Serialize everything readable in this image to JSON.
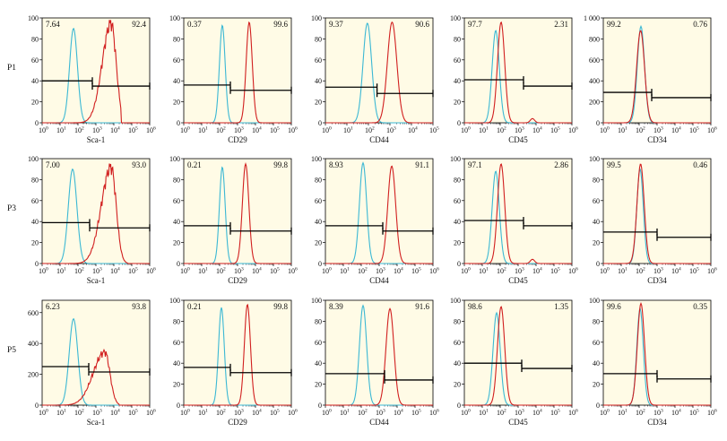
{
  "chart_data": {
    "type": "line",
    "layout": "3 rows x 5 columns of flow cytometry histograms",
    "rows": [
      "P1",
      "P3",
      "P5"
    ],
    "markers": [
      "Sca-1",
      "CD29",
      "CD44",
      "CD45",
      "CD34"
    ],
    "x_scale": "log",
    "x_ticks": [
      "0",
      "1",
      "2",
      "3",
      "4",
      "5",
      "6"
    ],
    "overlay_color": "#d11f1f",
    "control_color": "#3bb8d4",
    "panel_background": "#fffbe6",
    "panels": [
      {
        "row": "P1",
        "marker": "Sca-1",
        "x_exp_max": 6,
        "y_ticks": [
          "0",
          "20",
          "40",
          "60",
          "80",
          "100"
        ],
        "y_max": 100,
        "gate_left": "7.64",
        "gate_right": "92.4",
        "control": {
          "peak_log": 1.75,
          "height": 90,
          "spread": 0.22
        },
        "sample": {
          "peak_log": 3.85,
          "height": 95,
          "spread": 0.5,
          "shape": "broad-cutoff",
          "cutoff_log": 4.4
        },
        "gate_left_y": 40,
        "gate_right_y": 35,
        "split_log": 2.8
      },
      {
        "row": "P1",
        "marker": "CD29",
        "x_exp_max": 6,
        "y_ticks": [
          "0",
          "20",
          "40",
          "60",
          "80",
          "100"
        ],
        "y_max": 100,
        "gate_left": "0.37",
        "gate_right": "99.6",
        "control": {
          "peak_log": 2.15,
          "height": 93,
          "spread": 0.16
        },
        "sample": {
          "peak_log": 3.65,
          "height": 96,
          "spread": 0.17
        },
        "gate_left_y": 36,
        "gate_right_y": 31,
        "split_log": 2.6
      },
      {
        "row": "P1",
        "marker": "CD44",
        "x_exp_max": 5,
        "y_ticks": [
          "0",
          "20",
          "40",
          "60",
          "80",
          "100"
        ],
        "y_max": 100,
        "gate_left": "9.37",
        "gate_right": "90.6",
        "control": {
          "peak_log": 1.95,
          "height": 95,
          "spread": 0.2
        },
        "sample": {
          "peak_log": 3.1,
          "height": 96,
          "spread": 0.22
        },
        "gate_left_y": 34,
        "gate_right_y": 28,
        "split_log": 2.4
      },
      {
        "row": "P1",
        "marker": "CD45",
        "x_exp_max": 6,
        "y_ticks": [
          "0",
          "20",
          "40",
          "60",
          "80",
          "100"
        ],
        "y_max": 100,
        "gate_left": "97.7",
        "gate_right": "2.31",
        "control": {
          "peak_log": 1.75,
          "height": 88,
          "spread": 0.2
        },
        "sample": {
          "peak_log": 2.05,
          "height": 96,
          "spread": 0.2,
          "bump_log": 3.8
        },
        "gate_left_y": 41,
        "gate_right_y": 35,
        "split_log": 3.3
      },
      {
        "row": "P1",
        "marker": "CD34",
        "x_exp_max": 6,
        "y_ticks": [
          "0",
          "200",
          "400",
          "600",
          "800",
          "1 000"
        ],
        "y_max": 1000,
        "gate_left": "99.2",
        "gate_right": "0.76",
        "control": {
          "peak_log": 2.1,
          "height": 920,
          "spread": 0.2
        },
        "sample": {
          "peak_log": 2.08,
          "height": 880,
          "spread": 0.22
        },
        "gate_left_y": 290,
        "gate_right_y": 240,
        "split_log": 2.7
      },
      {
        "row": "P3",
        "marker": "Sca-1",
        "x_exp_max": 6,
        "y_ticks": [
          "0",
          "20",
          "40",
          "60",
          "80",
          "100"
        ],
        "y_max": 100,
        "gate_left": "7.00",
        "gate_right": "93.0",
        "control": {
          "peak_log": 1.7,
          "height": 90,
          "spread": 0.24
        },
        "sample": {
          "peak_log": 3.85,
          "height": 92,
          "spread": 0.55,
          "shape": "broad-cutoff",
          "cutoff_log": 4.8
        },
        "gate_left_y": 39,
        "gate_right_y": 34,
        "split_log": 2.65
      },
      {
        "row": "P3",
        "marker": "CD29",
        "x_exp_max": 6,
        "y_ticks": [
          "0",
          "20",
          "40",
          "60",
          "80",
          "100"
        ],
        "y_max": 100,
        "gate_left": "0.21",
        "gate_right": "99.8",
        "control": {
          "peak_log": 2.15,
          "height": 92,
          "spread": 0.16
        },
        "sample": {
          "peak_log": 3.45,
          "height": 95,
          "spread": 0.18
        },
        "gate_left_y": 36,
        "gate_right_y": 31,
        "split_log": 2.6
      },
      {
        "row": "P3",
        "marker": "CD44",
        "x_exp_max": 6,
        "y_ticks": [
          "0",
          "20",
          "40",
          "60",
          "80",
          "100"
        ],
        "y_max": 100,
        "gate_left": "8.93",
        "gate_right": "91.1",
        "control": {
          "peak_log": 2.1,
          "height": 96,
          "spread": 0.2
        },
        "sample": {
          "peak_log": 3.7,
          "height": 93,
          "spread": 0.22
        },
        "gate_left_y": 36,
        "gate_right_y": 31,
        "split_log": 3.2
      },
      {
        "row": "P3",
        "marker": "CD45",
        "x_exp_max": 6,
        "y_ticks": [
          "0",
          "20",
          "40",
          "60",
          "80",
          "100"
        ],
        "y_max": 100,
        "gate_left": "97.1",
        "gate_right": "2.86",
        "control": {
          "peak_log": 1.75,
          "height": 88,
          "spread": 0.2
        },
        "sample": {
          "peak_log": 2.05,
          "height": 95,
          "spread": 0.2,
          "bump_log": 3.8
        },
        "gate_left_y": 41,
        "gate_right_y": 36,
        "split_log": 3.3
      },
      {
        "row": "P3",
        "marker": "CD34",
        "x_exp_max": 6,
        "y_ticks": [
          "0",
          "20",
          "40",
          "60",
          "80",
          "100"
        ],
        "y_max": 100,
        "gate_left": "99.5",
        "gate_right": "0.46",
        "control": {
          "peak_log": 2.05,
          "height": 90,
          "spread": 0.18
        },
        "sample": {
          "peak_log": 2.08,
          "height": 95,
          "spread": 0.2
        },
        "gate_left_y": 30,
        "gate_right_y": 25,
        "split_log": 3.0
      },
      {
        "row": "P5",
        "marker": "Sca-1",
        "x_exp_max": 6,
        "y_ticks": [
          "0",
          "200",
          "400",
          "600"
        ],
        "y_max": 680,
        "gate_left": "6.23",
        "gate_right": "93.8",
        "control": {
          "peak_log": 1.75,
          "height": 560,
          "spread": 0.24
        },
        "sample": {
          "peak_log": 3.5,
          "height": 345,
          "spread": 0.65,
          "shape": "broad-cutoff",
          "cutoff_log": 4.3
        },
        "gate_left_y": 250,
        "gate_right_y": 215,
        "split_log": 2.6
      },
      {
        "row": "P5",
        "marker": "CD29",
        "x_exp_max": 6,
        "y_ticks": [
          "0",
          "20",
          "40",
          "60",
          "80",
          "100"
        ],
        "y_max": 100,
        "gate_left": "0.21",
        "gate_right": "99.8",
        "control": {
          "peak_log": 2.1,
          "height": 93,
          "spread": 0.16
        },
        "sample": {
          "peak_log": 3.55,
          "height": 96,
          "spread": 0.17
        },
        "gate_left_y": 36,
        "gate_right_y": 31,
        "split_log": 2.6
      },
      {
        "row": "P5",
        "marker": "CD44",
        "x_exp_max": 6,
        "y_ticks": [
          "0",
          "20",
          "40",
          "60",
          "80",
          "100"
        ],
        "y_max": 100,
        "gate_left": "8.39",
        "gate_right": "91.6",
        "control": {
          "peak_log": 2.1,
          "height": 95,
          "spread": 0.2
        },
        "sample": {
          "peak_log": 3.6,
          "height": 92,
          "spread": 0.22
        },
        "gate_left_y": 30,
        "gate_right_y": 24,
        "split_log": 3.3
      },
      {
        "row": "P5",
        "marker": "CD45",
        "x_exp_max": 6,
        "y_ticks": [
          "0",
          "20",
          "40",
          "60",
          "80",
          "100"
        ],
        "y_max": 100,
        "gate_left": "98.6",
        "gate_right": "1.35",
        "control": {
          "peak_log": 1.8,
          "height": 88,
          "spread": 0.2
        },
        "sample": {
          "peak_log": 2.05,
          "height": 94,
          "spread": 0.2
        },
        "gate_left_y": 40,
        "gate_right_y": 35,
        "split_log": 3.2
      },
      {
        "row": "P5",
        "marker": "CD34",
        "x_exp_max": 6,
        "y_ticks": [
          "0",
          "20",
          "40",
          "60",
          "80",
          "100"
        ],
        "y_max": 100,
        "gate_left": "99.6",
        "gate_right": "0.35",
        "control": {
          "peak_log": 2.05,
          "height": 92,
          "spread": 0.18
        },
        "sample": {
          "peak_log": 2.1,
          "height": 97,
          "spread": 0.2
        },
        "gate_left_y": 30,
        "gate_right_y": 25,
        "split_log": 3.0
      }
    ]
  }
}
